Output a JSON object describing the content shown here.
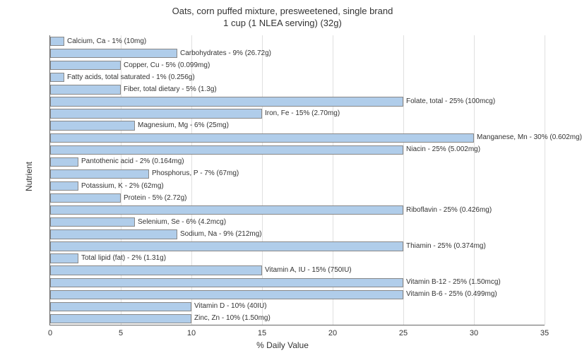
{
  "chart": {
    "type": "bar",
    "title_line1": "Oats, corn puffed mixture, presweetened, single brand",
    "title_line2": "1 cup (1 NLEA serving) (32g)",
    "title_fontsize": 13,
    "xlabel": "% Daily Value",
    "ylabel": "Nutrient",
    "label_fontsize": 12,
    "xlim": [
      0,
      35
    ],
    "xtick_step": 5,
    "background_color": "#ffffff",
    "grid_color": "#e0e0e0",
    "axis_color": "#666666",
    "bar_color": "#b0cdea",
    "bar_border_color": "#888888",
    "text_color": "#333333",
    "bar_label_fontsize": 10,
    "nutrients": [
      {
        "label": "Calcium, Ca - 1% (10mg)",
        "value": 1
      },
      {
        "label": "Carbohydrates - 9% (26.72g)",
        "value": 9
      },
      {
        "label": "Copper, Cu - 5% (0.099mg)",
        "value": 5
      },
      {
        "label": "Fatty acids, total saturated - 1% (0.256g)",
        "value": 1
      },
      {
        "label": "Fiber, total dietary - 5% (1.3g)",
        "value": 5
      },
      {
        "label": "Folate, total - 25% (100mcg)",
        "value": 25
      },
      {
        "label": "Iron, Fe - 15% (2.70mg)",
        "value": 15
      },
      {
        "label": "Magnesium, Mg - 6% (25mg)",
        "value": 6
      },
      {
        "label": "Manganese, Mn - 30% (0.602mg)",
        "value": 30
      },
      {
        "label": "Niacin - 25% (5.002mg)",
        "value": 25
      },
      {
        "label": "Pantothenic acid - 2% (0.164mg)",
        "value": 2
      },
      {
        "label": "Phosphorus, P - 7% (67mg)",
        "value": 7
      },
      {
        "label": "Potassium, K - 2% (62mg)",
        "value": 2
      },
      {
        "label": "Protein - 5% (2.72g)",
        "value": 5
      },
      {
        "label": "Riboflavin - 25% (0.426mg)",
        "value": 25
      },
      {
        "label": "Selenium, Se - 6% (4.2mcg)",
        "value": 6
      },
      {
        "label": "Sodium, Na - 9% (212mg)",
        "value": 9
      },
      {
        "label": "Thiamin - 25% (0.374mg)",
        "value": 25
      },
      {
        "label": "Total lipid (fat) - 2% (1.31g)",
        "value": 2
      },
      {
        "label": "Vitamin A, IU - 15% (750IU)",
        "value": 15
      },
      {
        "label": "Vitamin B-12 - 25% (1.50mcg)",
        "value": 25
      },
      {
        "label": "Vitamin B-6 - 25% (0.499mg)",
        "value": 25
      },
      {
        "label": "Vitamin D - 10% (40IU)",
        "value": 10
      },
      {
        "label": "Zinc, Zn - 10% (1.50mg)",
        "value": 10
      }
    ]
  }
}
